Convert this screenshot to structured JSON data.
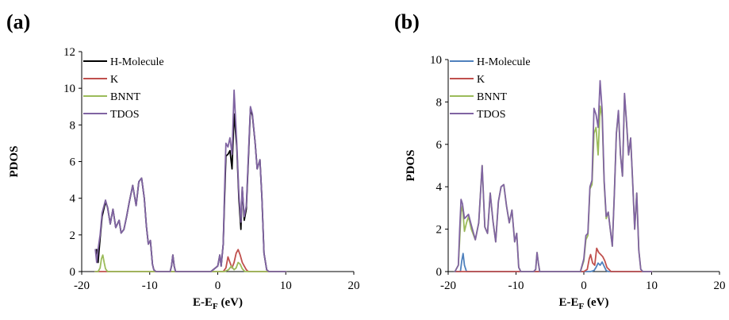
{
  "chart_data": [
    {
      "panel_label": "(a)",
      "type": "line",
      "xlabel": "E-E",
      "xlabel_sub": "F",
      "xlabel_unit": " (eV)",
      "ylabel": "PDOS",
      "xlim": [
        -20,
        20
      ],
      "ylim": [
        0,
        12
      ],
      "xticks": [
        -20,
        -10,
        0,
        10,
        20
      ],
      "yticks": [
        0,
        2,
        4,
        6,
        8,
        10,
        12
      ],
      "grid": false,
      "legend": "top-left",
      "series": [
        {
          "name": "H-Molecule",
          "color": "#000000",
          "x": [
            -17.8,
            -17.6,
            -17.3,
            -17.0,
            -16.5,
            -16.2,
            -15.8,
            -15.4,
            -15.0,
            -14.5,
            -14.2,
            -13.8,
            -13.4,
            -13.0,
            -12.5,
            -12.0,
            -11.6,
            -11.2,
            -10.8,
            -10.5,
            -10.2,
            -9.9,
            -9.6,
            -9.4,
            -9.1,
            -8.8,
            -8.4,
            -8.0,
            -7.5,
            -7.0,
            -6.8,
            -6.6,
            -6.4,
            -6.2,
            -6.0,
            -5.0,
            -3.0,
            -1.0,
            0.0,
            0.3,
            0.5,
            0.8,
            1.0,
            1.2,
            1.5,
            1.8,
            2.1,
            2.4,
            2.8,
            3.1,
            3.4,
            3.6,
            3.9,
            4.2,
            4.5,
            4.8,
            5.1,
            5.5,
            5.8,
            6.2,
            6.5,
            6.8,
            7.2,
            7.5,
            7.8,
            8.1,
            8.4,
            8.7,
            9.0,
            9.3,
            9.6,
            10.0
          ],
          "y": [
            1.2,
            0.5,
            1.8,
            3.0,
            3.8,
            3.5,
            2.6,
            3.4,
            2.4,
            2.8,
            2.1,
            2.3,
            3.0,
            3.8,
            4.7,
            3.6,
            4.9,
            5.1,
            4.0,
            2.5,
            1.5,
            1.7,
            0.4,
            0.1,
            0,
            0,
            0,
            0,
            0,
            0,
            0.3,
            0.9,
            0.3,
            0,
            0,
            0,
            0,
            0,
            0.3,
            0.9,
            0.3,
            1.5,
            4.0,
            6.3,
            6.4,
            6.6,
            5.6,
            8.6,
            6.8,
            4.0,
            2.3,
            4.6,
            2.8,
            3.4,
            6.1,
            8.9,
            8.5,
            7.0,
            5.6,
            6.1,
            4.0,
            1.0,
            0.1,
            0,
            0,
            0,
            0,
            0,
            0,
            0,
            0,
            0
          ]
        },
        {
          "name": "K",
          "color": "#c0504d",
          "x": [
            -18.0,
            -10.0,
            0.0,
            0.8,
            1.2,
            1.5,
            1.8,
            2.1,
            2.4,
            2.7,
            3.0,
            3.3,
            3.6,
            3.9,
            4.2,
            4.5,
            4.8,
            5.2,
            6.0,
            10.0
          ],
          "y": [
            0,
            0,
            0,
            0,
            0.2,
            0.8,
            0.5,
            0.2,
            0.5,
            1.0,
            1.2,
            0.9,
            0.5,
            0.3,
            0.1,
            0,
            0,
            0,
            0,
            0
          ]
        },
        {
          "name": "BNNT",
          "color": "#9bbb59",
          "x": [
            -18.0,
            -17.6,
            -17.3,
            -17.1,
            -16.9,
            -16.7,
            -16.5,
            -16.2,
            -15.5,
            -10.0,
            0.0,
            1.0,
            1.6,
            2.0,
            2.4,
            2.7,
            3.0,
            3.3,
            3.6,
            4.0,
            4.5,
            5.0,
            10.0
          ],
          "y": [
            0,
            0,
            0.2,
            0.7,
            0.9,
            0.5,
            0.15,
            0,
            0,
            0,
            0,
            0,
            0.1,
            0.3,
            0.1,
            0.2,
            0.5,
            0.4,
            0.15,
            0,
            0,
            0,
            0
          ]
        },
        {
          "name": "TDOS",
          "color": "#8064a2",
          "x": [
            -18.0,
            -17.8,
            -17.6,
            -17.3,
            -17.0,
            -16.5,
            -16.2,
            -15.8,
            -15.4,
            -15.0,
            -14.5,
            -14.2,
            -13.8,
            -13.4,
            -13.0,
            -12.5,
            -12.0,
            -11.6,
            -11.2,
            -10.8,
            -10.5,
            -10.2,
            -9.9,
            -9.6,
            -9.4,
            -9.1,
            -8.8,
            -8.4,
            -8.0,
            -7.5,
            -7.0,
            -6.8,
            -6.6,
            -6.4,
            -6.2,
            -6.0,
            -5.0,
            -3.0,
            -1.0,
            0.0,
            0.3,
            0.5,
            0.8,
            1.0,
            1.2,
            1.5,
            1.8,
            2.1,
            2.4,
            2.8,
            3.1,
            3.4,
            3.6,
            3.9,
            4.2,
            4.5,
            4.8,
            5.1,
            5.5,
            5.8,
            6.2,
            6.5,
            6.8,
            7.2,
            7.5,
            7.8,
            8.1,
            8.4,
            8.7,
            9.0,
            9.3,
            9.6,
            10.0
          ],
          "y": [
            1.2,
            0.5,
            1.2,
            2.0,
            3.2,
            3.9,
            3.5,
            2.6,
            3.4,
            2.4,
            2.8,
            2.1,
            2.3,
            3.0,
            3.8,
            4.7,
            3.6,
            4.9,
            5.1,
            4.0,
            2.5,
            1.5,
            1.7,
            0.4,
            0.1,
            0,
            0,
            0,
            0,
            0,
            0,
            0.3,
            0.9,
            0.3,
            0,
            0,
            0,
            0,
            0,
            0.3,
            0.9,
            0.3,
            1.5,
            4.5,
            7.0,
            6.8,
            7.3,
            6.4,
            9.9,
            7.0,
            4.3,
            2.7,
            4.6,
            3.0,
            3.6,
            6.3,
            9.0,
            8.6,
            7.0,
            5.6,
            6.1,
            4.0,
            1.0,
            0.1,
            0,
            0,
            0,
            0,
            0,
            0,
            0,
            0,
            0
          ]
        }
      ]
    },
    {
      "panel_label": "(b)",
      "type": "line",
      "xlabel": "E-E",
      "xlabel_sub": "F",
      "xlabel_unit": " (eV)",
      "ylabel": "PDOS",
      "xlim": [
        -20,
        20
      ],
      "ylim": [
        0,
        10
      ],
      "xticks": [
        -20,
        -10,
        0,
        10,
        20
      ],
      "yticks": [
        0,
        2,
        4,
        6,
        8,
        10
      ],
      "grid": false,
      "legend": "top-left",
      "series": [
        {
          "name": "H-Molecule",
          "color": "#4f81bd",
          "x": [
            -19.0,
            -18.2,
            -18.0,
            -17.8,
            -17.6,
            -17.3,
            -16.0,
            -10.0,
            0.0,
            1.0,
            1.5,
            1.8,
            2.1,
            2.4,
            2.7,
            3.0,
            3.3,
            3.6,
            4.0,
            5.0,
            10.0
          ],
          "y": [
            0,
            0,
            0.5,
            0.85,
            0.3,
            0,
            0,
            0,
            0,
            0,
            0.05,
            0.2,
            0.4,
            0.3,
            0.45,
            0.25,
            0.05,
            0,
            0,
            0,
            0
          ]
        },
        {
          "name": "K",
          "color": "#c0504d",
          "x": [
            -19.0,
            -10.0,
            0.0,
            0.5,
            0.8,
            1.0,
            1.3,
            1.6,
            1.9,
            2.2,
            2.5,
            2.8,
            3.1,
            3.4,
            3.7,
            4.0,
            4.5,
            5.0,
            10.0
          ],
          "y": [
            0,
            0,
            0,
            0.1,
            0.6,
            0.8,
            0.4,
            0.3,
            1.1,
            0.9,
            0.8,
            0.7,
            0.5,
            0.2,
            0.1,
            0,
            0,
            0,
            0
          ]
        },
        {
          "name": "BNNT",
          "color": "#9bbb59",
          "x": [
            -19.0,
            -18.5,
            -18.3,
            -18.1,
            -17.9,
            -17.6,
            -17.3,
            -17.0,
            -16.6,
            -16.0,
            -15.5,
            -15.0,
            -14.6,
            -14.2,
            -13.8,
            -13.4,
            -13.0,
            -12.6,
            -12.2,
            -11.8,
            -11.4,
            -11.0,
            -10.6,
            -10.2,
            -9.9,
            -9.6,
            -9.3,
            -9.0,
            -8.0,
            -7.4,
            -7.1,
            -6.9,
            -6.7,
            -6.5,
            -5.0,
            -2.0,
            -0.5,
            0.0,
            0.3,
            0.6,
            0.9,
            1.2,
            1.5,
            1.8,
            2.1,
            2.4,
            2.7,
            3.0,
            3.3,
            3.6,
            3.9,
            4.2,
            4.5,
            4.8,
            5.1,
            5.4,
            5.7,
            6.0,
            6.3,
            6.6,
            6.9,
            7.2,
            7.5,
            7.8,
            8.1,
            8.4,
            8.7,
            9.0,
            10.0
          ],
          "y": [
            0,
            0.3,
            1.5,
            2.8,
            3.1,
            1.9,
            2.3,
            2.6,
            2.0,
            1.5,
            2.3,
            5.0,
            2.1,
            1.8,
            3.7,
            2.4,
            1.4,
            3.3,
            4.0,
            4.1,
            3.1,
            2.3,
            2.9,
            1.4,
            1.8,
            0.2,
            0,
            0,
            0,
            0,
            0.1,
            0.9,
            0.4,
            0,
            0,
            0,
            0,
            0.5,
            1.5,
            1.7,
            3.9,
            4.1,
            6.5,
            6.8,
            5.5,
            7.8,
            7.3,
            4.2,
            2.5,
            2.8,
            2.0,
            1.2,
            3.7,
            6.5,
            7.5,
            5.5,
            4.5,
            8.3,
            7.0,
            5.5,
            6.3,
            4.2,
            2.0,
            3.7,
            1.0,
            0.1,
            0,
            0,
            0
          ]
        },
        {
          "name": "TDOS",
          "color": "#8064a2",
          "x": [
            -19.0,
            -18.5,
            -18.3,
            -18.1,
            -17.9,
            -17.6,
            -17.3,
            -17.0,
            -16.6,
            -16.0,
            -15.5,
            -15.0,
            -14.6,
            -14.2,
            -13.8,
            -13.4,
            -13.0,
            -12.6,
            -12.2,
            -11.8,
            -11.4,
            -11.0,
            -10.6,
            -10.2,
            -9.9,
            -9.6,
            -9.3,
            -9.0,
            -8.0,
            -7.4,
            -7.1,
            -6.9,
            -6.7,
            -6.5,
            -5.0,
            -2.0,
            -0.5,
            0.0,
            0.3,
            0.6,
            0.9,
            1.2,
            1.5,
            1.8,
            2.1,
            2.4,
            2.7,
            3.0,
            3.3,
            3.6,
            3.9,
            4.2,
            4.5,
            4.8,
            5.1,
            5.4,
            5.7,
            6.0,
            6.3,
            6.6,
            6.9,
            7.2,
            7.5,
            7.8,
            8.1,
            8.4,
            8.7,
            9.0,
            10.0
          ],
          "y": [
            0,
            0.3,
            2.0,
            3.4,
            3.2,
            2.5,
            2.6,
            2.7,
            2.2,
            1.5,
            2.3,
            5.0,
            2.1,
            1.8,
            3.7,
            2.4,
            1.4,
            3.3,
            4.0,
            4.1,
            3.1,
            2.3,
            2.9,
            1.4,
            1.8,
            0.2,
            0,
            0,
            0,
            0,
            0.1,
            0.9,
            0.4,
            0,
            0,
            0,
            0,
            0.6,
            1.7,
            1.8,
            4.0,
            4.3,
            7.7,
            7.4,
            6.8,
            9.0,
            7.6,
            4.3,
            2.6,
            2.8,
            2.0,
            1.2,
            3.7,
            6.5,
            7.6,
            5.5,
            4.5,
            8.4,
            7.0,
            5.5,
            6.3,
            4.2,
            2.0,
            3.7,
            1.0,
            0.1,
            0,
            0,
            0
          ]
        }
      ]
    }
  ]
}
